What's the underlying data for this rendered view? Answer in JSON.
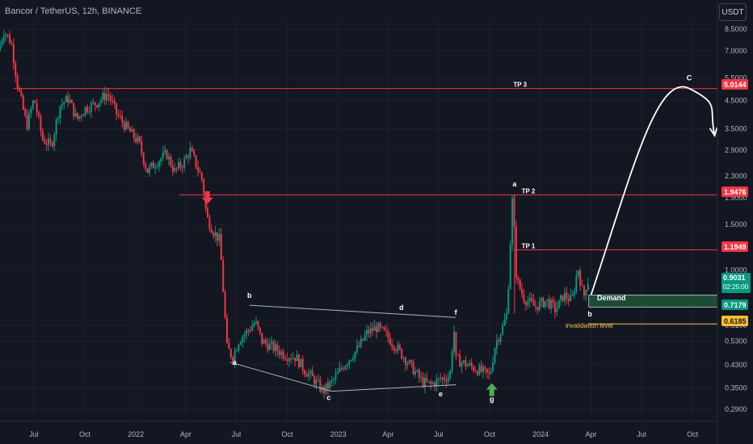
{
  "header": {
    "title": "Bancor / TetherUS, 12h, BINANCE"
  },
  "currency_button": {
    "label": "USDT"
  },
  "colors": {
    "background": "#131722",
    "up": "#089981",
    "down": "#f23645",
    "target_line": "#f23645",
    "demand_zone": "#1e4d37",
    "invalidation": "#f0c14b",
    "wave_line": "#b2b5be"
  },
  "price_tags": {
    "tp3": "5.0144",
    "tp2": "1.9476",
    "tp1": "1.1949",
    "current": "0.9031",
    "countdown": "02:25:00",
    "demand": "0.7179",
    "invalidation": "0.6185"
  },
  "chart_data": {
    "type": "candlestick",
    "symbol": "Bancor / TetherUS",
    "interval": "12h",
    "exchange": "BINANCE",
    "y_scale": "log",
    "ylim": [
      0.26,
      9.2
    ],
    "xlim": [
      "2021-05-01",
      "2024-11-15"
    ],
    "y_ticks": [
      "8.5000",
      "7.0000",
      "5.5000",
      "4.5000",
      "3.5000",
      "2.9000",
      "2.3000",
      "1.9000",
      "1.5000",
      "1.0000",
      "0.6100",
      "0.5300",
      "0.4300",
      "0.3500",
      "0.2900"
    ],
    "x_ticks": [
      {
        "label": "Jul",
        "date": "2021-07-01"
      },
      {
        "label": "Oct",
        "date": "2021-10-01"
      },
      {
        "label": "2022",
        "date": "2022-01-01"
      },
      {
        "label": "Apr",
        "date": "2022-04-01"
      },
      {
        "label": "Jul",
        "date": "2022-07-01"
      },
      {
        "label": "Oct",
        "date": "2022-10-01"
      },
      {
        "label": "2023",
        "date": "2023-01-01"
      },
      {
        "label": "Apr",
        "date": "2023-04-01"
      },
      {
        "label": "Jul",
        "date": "2023-07-01"
      },
      {
        "label": "Oct",
        "date": "2023-10-01"
      },
      {
        "label": "2024",
        "date": "2024-01-01"
      },
      {
        "label": "Apr",
        "date": "2024-04-01"
      },
      {
        "label": "Jul",
        "date": "2024-07-01"
      },
      {
        "label": "Oct",
        "date": "2024-10-01"
      }
    ],
    "price_path": [
      [
        "2021-05-01",
        7.0
      ],
      [
        "2021-05-12",
        8.4
      ],
      [
        "2021-05-25",
        7.5
      ],
      [
        "2021-06-05",
        5.2
      ],
      [
        "2021-06-22",
        3.6
      ],
      [
        "2021-07-05",
        4.6
      ],
      [
        "2021-07-20",
        3.2
      ],
      [
        "2021-08-05",
        3.0
      ],
      [
        "2021-08-20",
        4.3
      ],
      [
        "2021-09-05",
        4.6
      ],
      [
        "2021-09-20",
        3.8
      ],
      [
        "2021-10-05",
        4.2
      ],
      [
        "2021-10-25",
        4.4
      ],
      [
        "2021-11-15",
        4.8
      ],
      [
        "2021-12-01",
        4.0
      ],
      [
        "2021-12-20",
        3.5
      ],
      [
        "2022-01-10",
        3.1
      ],
      [
        "2022-01-25",
        2.4
      ],
      [
        "2022-02-10",
        2.6
      ],
      [
        "2022-03-01",
        2.8
      ],
      [
        "2022-03-15",
        2.4
      ],
      [
        "2022-04-01",
        2.6
      ],
      [
        "2022-04-12",
        2.9
      ],
      [
        "2022-04-25",
        2.5
      ],
      [
        "2022-05-05",
        2.2
      ],
      [
        "2022-05-12",
        1.6
      ],
      [
        "2022-05-25",
        1.4
      ],
      [
        "2022-06-05",
        1.3
      ],
      [
        "2022-06-18",
        0.5
      ],
      [
        "2022-06-28",
        0.46
      ],
      [
        "2022-07-10",
        0.54
      ],
      [
        "2022-07-25",
        0.58
      ],
      [
        "2022-08-08",
        0.63
      ],
      [
        "2022-08-20",
        0.53
      ],
      [
        "2022-09-10",
        0.5
      ],
      [
        "2022-10-01",
        0.47
      ],
      [
        "2022-10-20",
        0.46
      ],
      [
        "2022-11-05",
        0.41
      ],
      [
        "2022-11-20",
        0.38
      ],
      [
        "2022-12-08",
        0.34
      ],
      [
        "2022-12-25",
        0.37
      ],
      [
        "2023-01-15",
        0.43
      ],
      [
        "2023-02-10",
        0.5
      ],
      [
        "2023-02-25",
        0.57
      ],
      [
        "2023-03-15",
        0.6
      ],
      [
        "2023-04-01",
        0.56
      ],
      [
        "2023-04-20",
        0.5
      ],
      [
        "2023-05-10",
        0.44
      ],
      [
        "2023-06-05",
        0.37
      ],
      [
        "2023-06-20",
        0.36
      ],
      [
        "2023-07-10",
        0.38
      ],
      [
        "2023-07-25",
        0.39
      ],
      [
        "2023-08-01",
        0.6
      ],
      [
        "2023-08-05",
        0.45
      ],
      [
        "2023-08-25",
        0.43
      ],
      [
        "2023-09-15",
        0.41
      ],
      [
        "2023-10-05",
        0.39
      ],
      [
        "2023-10-15",
        0.52
      ],
      [
        "2023-10-28",
        0.6
      ],
      [
        "2023-11-05",
        0.68
      ],
      [
        "2023-11-15",
        1.95
      ],
      [
        "2023-11-22",
        0.92
      ],
      [
        "2023-12-05",
        0.78
      ],
      [
        "2023-12-25",
        0.72
      ],
      [
        "2024-01-15",
        0.76
      ],
      [
        "2024-02-01",
        0.7
      ],
      [
        "2024-02-15",
        0.8
      ],
      [
        "2024-03-01",
        0.76
      ],
      [
        "2024-03-12",
        1.02
      ],
      [
        "2024-03-22",
        0.78
      ],
      [
        "2024-03-28",
        0.9031
      ]
    ],
    "horizontal_levels": [
      {
        "label": "TP 3",
        "price": 5.0144,
        "from": "2021-05-25",
        "color": "#f23645"
      },
      {
        "label": "TP 2",
        "price": 1.9476,
        "from": "2022-03-20",
        "color": "#f23645"
      },
      {
        "label": "TP 1",
        "price": 1.1949,
        "from": "2023-11-15",
        "color": "#f23645"
      },
      {
        "label": "invalidation level",
        "price": 0.6185,
        "from": "2024-03-28",
        "color": "#f0c14b"
      }
    ],
    "demand_zone": {
      "label": "Demand",
      "top": 0.8,
      "bottom": 0.7179,
      "from": "2024-03-28"
    },
    "wave_labels": [
      {
        "text": "a",
        "date": "2022-06-28",
        "price": 0.43
      },
      {
        "text": "b",
        "date": "2022-07-25",
        "price": 0.78
      },
      {
        "text": "c",
        "date": "2022-12-15",
        "price": 0.315
      },
      {
        "text": "d",
        "date": "2023-04-25",
        "price": 0.7
      },
      {
        "text": "e",
        "date": "2023-07-05",
        "price": 0.325
      },
      {
        "text": "f",
        "date": "2023-08-01",
        "price": 0.67
      },
      {
        "text": "g",
        "date": "2023-10-05",
        "price": 0.31
      },
      {
        "text": "a",
        "date": "2023-11-15",
        "price": 2.1
      },
      {
        "text": "b",
        "date": "2024-03-30",
        "price": 0.66
      },
      {
        "text": "C",
        "date": "2024-09-25",
        "price": 5.4
      }
    ],
    "triangle_lines": [
      [
        [
          "2022-06-20",
          0.44
        ],
        [
          "2022-12-20",
          0.34
        ]
      ],
      [
        [
          "2022-07-25",
          0.73
        ],
        [
          "2023-08-01",
          0.655
        ]
      ],
      [
        [
          "2022-12-20",
          0.34
        ],
        [
          "2023-08-01",
          0.36
        ]
      ]
    ],
    "level_labels": [
      {
        "text": "TP 3",
        "date": "2023-11-25",
        "price": 5.0144
      },
      {
        "text": "TP 2",
        "date": "2023-12-10",
        "price": 1.9476
      },
      {
        "text": "TP 1",
        "date": "2023-12-10",
        "price": 1.1949
      }
    ],
    "projection_arrow": {
      "from": [
        "2024-04-01",
        0.8
      ],
      "peak": [
        "2024-09-25",
        5.0144
      ],
      "to": [
        "2024-11-10",
        3.3
      ]
    },
    "markers": [
      {
        "type": "down-arrow",
        "date": "2022-05-10",
        "price": 1.9,
        "color": "#f23645"
      },
      {
        "type": "up-arrow",
        "date": "2023-10-05",
        "price": 0.345,
        "color": "#4caf50"
      }
    ]
  }
}
